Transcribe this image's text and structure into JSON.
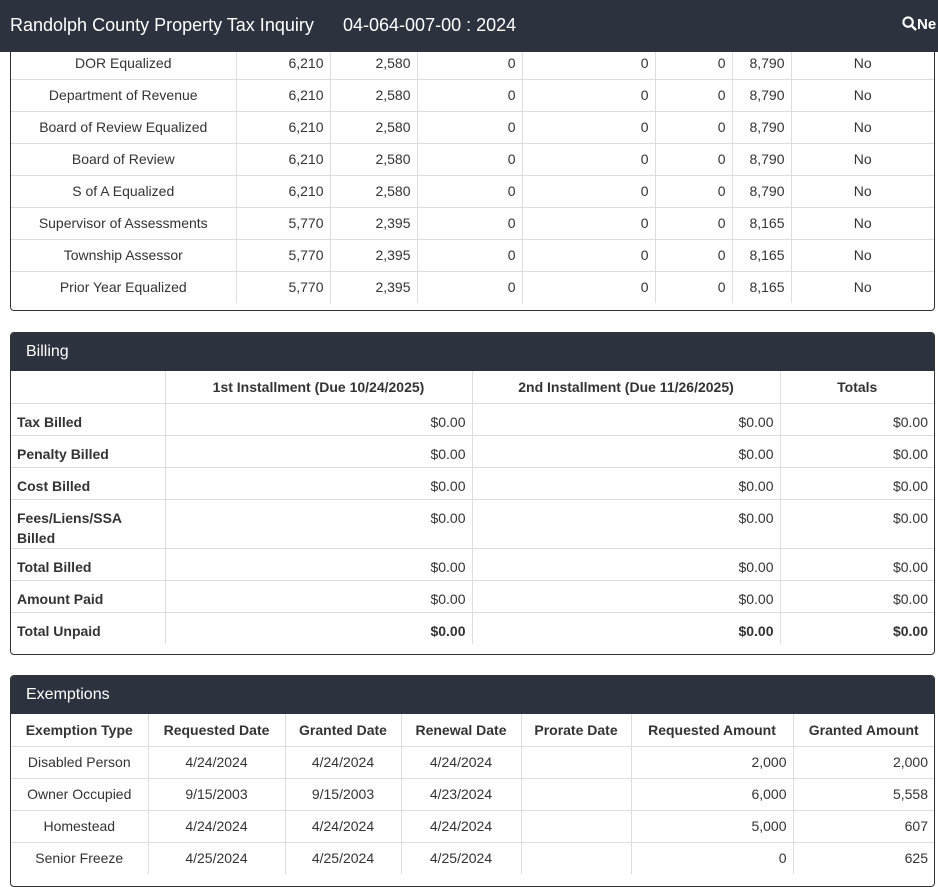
{
  "header": {
    "title": "Randolph County Property Tax Inquiry",
    "parcel": "04-064-007-00 : 2024",
    "search": "Ne"
  },
  "assessments": {
    "rows": [
      [
        "DOR Equalized",
        "6,210",
        "2,580",
        "0",
        "0",
        "0",
        "8,790",
        "No"
      ],
      [
        "Department of Revenue",
        "6,210",
        "2,580",
        "0",
        "0",
        "0",
        "8,790",
        "No"
      ],
      [
        "Board of Review Equalized",
        "6,210",
        "2,580",
        "0",
        "0",
        "0",
        "8,790",
        "No"
      ],
      [
        "Board of Review",
        "6,210",
        "2,580",
        "0",
        "0",
        "0",
        "8,790",
        "No"
      ],
      [
        "S of A Equalized",
        "6,210",
        "2,580",
        "0",
        "0",
        "0",
        "8,790",
        "No"
      ],
      [
        "Supervisor of Assessments",
        "5,770",
        "2,395",
        "0",
        "0",
        "0",
        "8,165",
        "No"
      ],
      [
        "Township Assessor",
        "5,770",
        "2,395",
        "0",
        "0",
        "0",
        "8,165",
        "No"
      ],
      [
        "Prior Year Equalized",
        "5,770",
        "2,395",
        "0",
        "0",
        "0",
        "8,165",
        "No"
      ]
    ]
  },
  "billing": {
    "title": "Billing",
    "columns": [
      "1st Installment (Due 10/24/2025)",
      "2nd Installment (Due 11/26/2025)",
      "Totals"
    ],
    "rows": [
      {
        "label": "Tax Billed",
        "values": [
          "$0.00",
          "$0.00",
          "$0.00"
        ]
      },
      {
        "label": "Penalty Billed",
        "values": [
          "$0.00",
          "$0.00",
          "$0.00"
        ]
      },
      {
        "label": "Cost Billed",
        "values": [
          "$0.00",
          "$0.00",
          "$0.00"
        ]
      },
      {
        "label": "Fees/Liens/SSA Billed",
        "values": [
          "$0.00",
          "$0.00",
          "$0.00"
        ]
      },
      {
        "label": "Total Billed",
        "values": [
          "$0.00",
          "$0.00",
          "$0.00"
        ]
      },
      {
        "label": "Amount Paid",
        "values": [
          "$0.00",
          "$0.00",
          "$0.00"
        ]
      },
      {
        "label": "Total Unpaid",
        "values": [
          "$0.00",
          "$0.00",
          "$0.00"
        ]
      }
    ]
  },
  "exemptions": {
    "title": "Exemptions",
    "columns": [
      "Exemption Type",
      "Requested Date",
      "Granted Date",
      "Renewal Date",
      "Prorate Date",
      "Requested Amount",
      "Granted Amount"
    ],
    "rows": [
      [
        "Disabled Person",
        "4/24/2024",
        "4/24/2024",
        "4/24/2024",
        null,
        "2,000",
        "2,000"
      ],
      [
        "Owner Occupied",
        "9/15/2003",
        "9/15/2003",
        "4/23/2024",
        null,
        "6,000",
        "5,558"
      ],
      [
        "Homestead",
        "4/24/2024",
        "4/24/2024",
        "4/24/2024",
        null,
        "5,000",
        "607"
      ],
      [
        "Senior Freeze",
        "4/25/2024",
        "4/25/2024",
        "4/25/2024",
        null,
        "0",
        "625"
      ]
    ]
  }
}
